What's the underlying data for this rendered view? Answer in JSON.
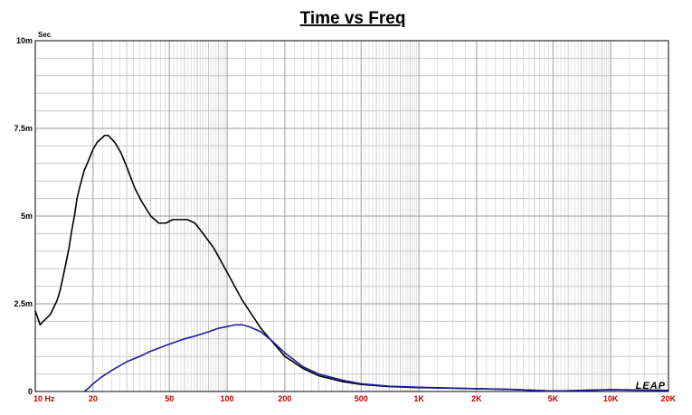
{
  "chart_data": {
    "type": "line",
    "title": "Time vs Freq",
    "y_unit": "Sec",
    "xscale": "log",
    "xlim": [
      10,
      20000
    ],
    "ylim": [
      0,
      0.01
    ],
    "grid": true,
    "x_ticks": [
      {
        "value": 10,
        "label": "10  Hz"
      },
      {
        "value": 20,
        "label": "20"
      },
      {
        "value": 50,
        "label": "50"
      },
      {
        "value": 100,
        "label": "100"
      },
      {
        "value": 200,
        "label": "200"
      },
      {
        "value": 500,
        "label": "500"
      },
      {
        "value": 1000,
        "label": "1K"
      },
      {
        "value": 2000,
        "label": "2K"
      },
      {
        "value": 5000,
        "label": "5K"
      },
      {
        "value": 10000,
        "label": "10K"
      },
      {
        "value": 20000,
        "label": "20K"
      }
    ],
    "y_ticks": [
      {
        "value": 0,
        "label": "0"
      },
      {
        "value": 0.0025,
        "label": "2.5m"
      },
      {
        "value": 0.005,
        "label": "5m"
      },
      {
        "value": 0.0075,
        "label": "7.5m"
      },
      {
        "value": 0.01,
        "label": "10m"
      }
    ],
    "watermark": "LEAP",
    "series": [
      {
        "color": "#000000",
        "points": [
          [
            10,
            0.0023
          ],
          [
            10.3,
            0.0021
          ],
          [
            10.6,
            0.0019
          ],
          [
            11,
            0.002
          ],
          [
            11.5,
            0.0021
          ],
          [
            12,
            0.0022
          ],
          [
            12.5,
            0.0024
          ],
          [
            13,
            0.0026
          ],
          [
            13.5,
            0.0029
          ],
          [
            14,
            0.0033
          ],
          [
            14.5,
            0.0037
          ],
          [
            15,
            0.0041
          ],
          [
            15.5,
            0.0046
          ],
          [
            16,
            0.005
          ],
          [
            16.5,
            0.0055
          ],
          [
            17,
            0.0058
          ],
          [
            18,
            0.0063
          ],
          [
            19,
            0.0066
          ],
          [
            20,
            0.0069
          ],
          [
            21,
            0.0071
          ],
          [
            22,
            0.0072
          ],
          [
            23,
            0.0073
          ],
          [
            24,
            0.0073
          ],
          [
            25,
            0.0072
          ],
          [
            26,
            0.0071
          ],
          [
            28,
            0.0068
          ],
          [
            30,
            0.0064
          ],
          [
            33,
            0.0058
          ],
          [
            36,
            0.0054
          ],
          [
            40,
            0.005
          ],
          [
            44,
            0.0048
          ],
          [
            48,
            0.0048
          ],
          [
            52,
            0.0049
          ],
          [
            57,
            0.0049
          ],
          [
            62,
            0.0049
          ],
          [
            68,
            0.0048
          ],
          [
            75,
            0.0045
          ],
          [
            85,
            0.0041
          ],
          [
            100,
            0.0034
          ],
          [
            120,
            0.0026
          ],
          [
            150,
            0.0018
          ],
          [
            200,
            0.001
          ],
          [
            250,
            0.00065
          ],
          [
            300,
            0.00045
          ],
          [
            400,
            0.00028
          ],
          [
            500,
            0.0002
          ],
          [
            700,
            0.00014
          ],
          [
            1000,
            0.00011
          ],
          [
            2000,
            8e-05
          ],
          [
            3000,
            6e-05
          ],
          [
            5000,
            1e-05
          ],
          [
            7000,
            3e-05
          ],
          [
            10000,
            5e-05
          ],
          [
            15000,
            4e-05
          ],
          [
            20000,
            3e-05
          ]
        ]
      },
      {
        "color": "#1c1c9c",
        "points": [
          [
            18,
            0.0
          ],
          [
            19,
            0.0001
          ],
          [
            20,
            0.00022
          ],
          [
            22,
            0.0004
          ],
          [
            25,
            0.0006
          ],
          [
            30,
            0.00085
          ],
          [
            35,
            0.001
          ],
          [
            40,
            0.00115
          ],
          [
            50,
            0.00135
          ],
          [
            60,
            0.0015
          ],
          [
            70,
            0.0016
          ],
          [
            80,
            0.0017
          ],
          [
            90,
            0.0018
          ],
          [
            100,
            0.00185
          ],
          [
            110,
            0.0019
          ],
          [
            120,
            0.0019
          ],
          [
            130,
            0.00185
          ],
          [
            150,
            0.0017
          ],
          [
            175,
            0.0014
          ],
          [
            200,
            0.0011
          ],
          [
            250,
            0.0007
          ],
          [
            300,
            0.0005
          ],
          [
            400,
            0.00032
          ],
          [
            500,
            0.00022
          ],
          [
            700,
            0.00015
          ],
          [
            1000,
            0.00012
          ],
          [
            2000,
            8e-05
          ],
          [
            3000,
            6e-05
          ],
          [
            5000,
            1e-05
          ],
          [
            7000,
            3e-05
          ],
          [
            10000,
            5e-05
          ],
          [
            15000,
            4e-05
          ],
          [
            20000,
            3e-05
          ]
        ]
      }
    ]
  }
}
